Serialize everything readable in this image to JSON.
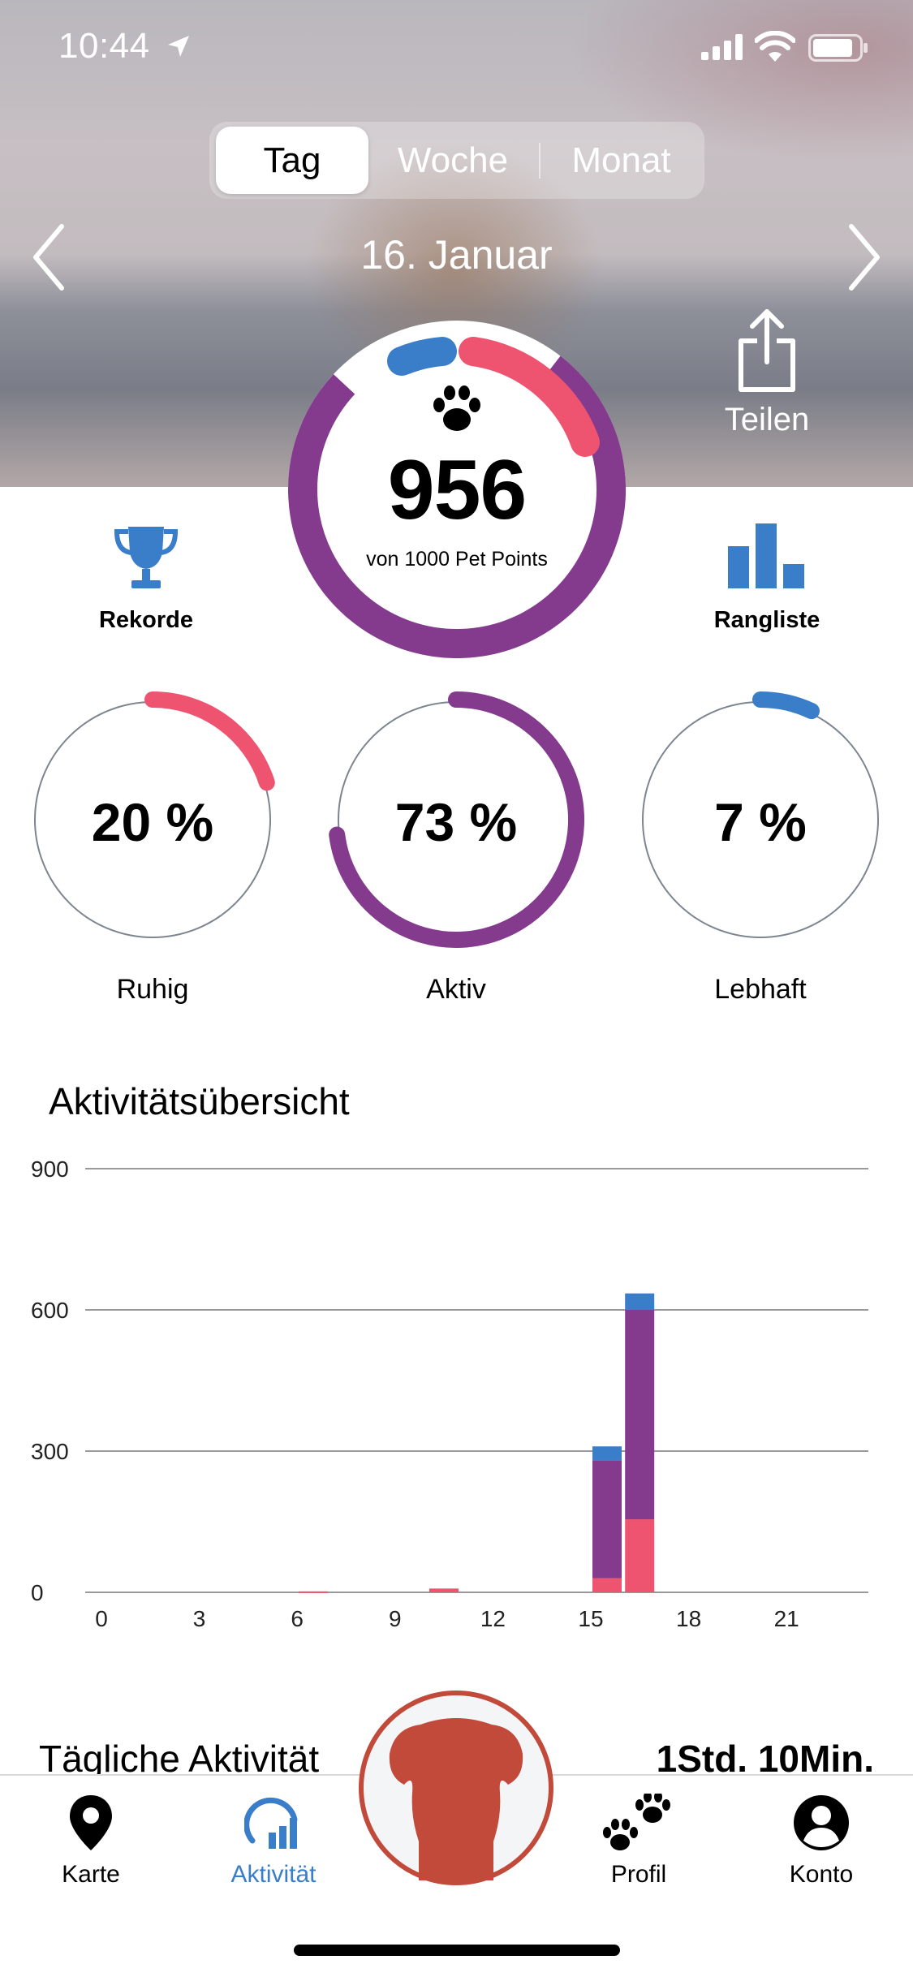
{
  "status_bar": {
    "time": "10:44"
  },
  "segments": [
    {
      "label": "Tag",
      "selected": true
    },
    {
      "label": "Woche",
      "selected": false
    },
    {
      "label": "Monat",
      "selected": false
    }
  ],
  "date": "16. Januar",
  "share_label": "Teilen",
  "points": {
    "value": "956",
    "subtitle": "von 1000 Pet Points",
    "progress": 0.956
  },
  "records_label": "Rekorde",
  "ranking_label": "Rangliste",
  "rings": [
    {
      "value": "20 %",
      "label": "Ruhig",
      "fraction": 0.2,
      "color": "#ee5370"
    },
    {
      "value": "73 %",
      "label": "Aktiv",
      "fraction": 0.73,
      "color": "#843a8d"
    },
    {
      "value": "7 %",
      "label": "Lebhaft",
      "fraction": 0.07,
      "color": "#3a7dc9"
    }
  ],
  "chart_title": "Aktivitätsübersicht",
  "chart_data": {
    "type": "bar",
    "stacked": true,
    "x": [
      0,
      1,
      2,
      3,
      4,
      5,
      6,
      7,
      8,
      9,
      10,
      11,
      12,
      13,
      14,
      15,
      16,
      17,
      18,
      19,
      20,
      21,
      22,
      23
    ],
    "x_ticks": [
      "0",
      "3",
      "6",
      "9",
      "12",
      "15",
      "18",
      "21"
    ],
    "y_ticks": [
      "900",
      "600",
      "300",
      "0"
    ],
    "ylim": [
      0,
      900
    ],
    "series": [
      {
        "color": "#ee5370",
        "values": [
          0,
          0,
          0,
          0,
          0,
          0,
          2,
          0,
          0,
          0,
          8,
          0,
          0,
          0,
          0,
          30,
          155,
          0,
          0,
          0,
          0,
          0,
          0,
          0
        ]
      },
      {
        "color": "#843a8d",
        "values": [
          0,
          0,
          0,
          0,
          0,
          0,
          0,
          0,
          0,
          0,
          0,
          0,
          0,
          0,
          0,
          250,
          445,
          0,
          0,
          0,
          0,
          0,
          0,
          0
        ]
      },
      {
        "color": "#3a7dc9",
        "values": [
          0,
          0,
          0,
          0,
          0,
          0,
          0,
          0,
          0,
          0,
          0,
          0,
          0,
          0,
          0,
          30,
          35,
          0,
          0,
          0,
          0,
          0,
          0,
          0
        ]
      }
    ],
    "grid": true,
    "legend": "none"
  },
  "daily": {
    "label": "Tägliche Aktivität",
    "value": "1Std. 10Min."
  },
  "tabs": [
    {
      "label": "Karte",
      "icon": "map-pin-icon",
      "active": false
    },
    {
      "label": "Aktivität",
      "icon": "activity-icon",
      "active": true
    },
    {
      "label": "Profil",
      "icon": "paws-icon",
      "active": false
    },
    {
      "label": "Konto",
      "icon": "account-icon",
      "active": false
    }
  ],
  "colors": {
    "accent": "#3a7dc9",
    "red": "#ee5370",
    "purple": "#843a8d",
    "dog": "#c24a3a"
  }
}
